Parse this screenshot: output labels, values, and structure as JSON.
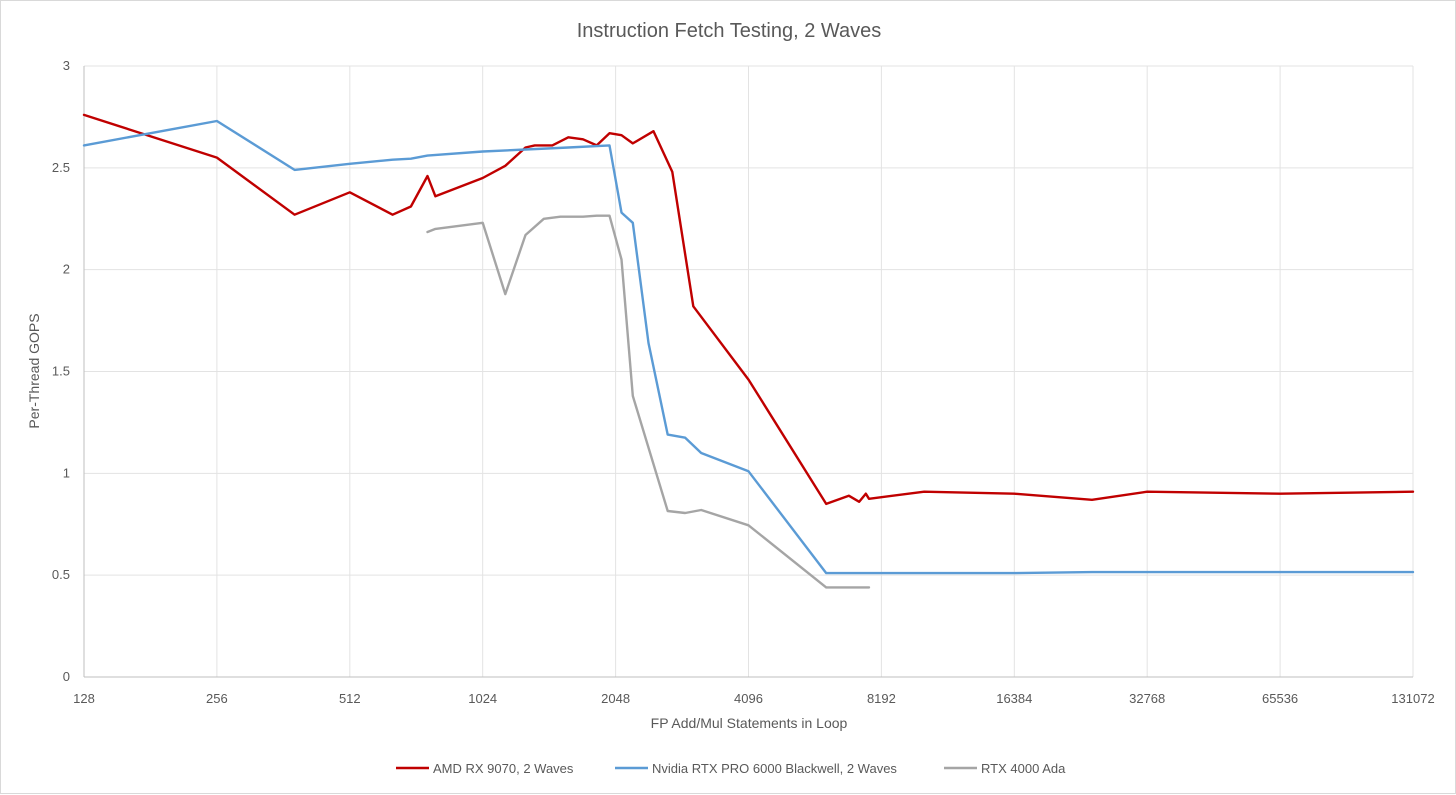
{
  "chart_data": {
    "type": "line",
    "title": "Instruction Fetch Testing, 2 Waves",
    "xlabel": "FP Add/Mul Statements in Loop",
    "ylabel": "Per-Thread GOPS",
    "x_scale": "log2",
    "xlim": [
      128,
      131072
    ],
    "ylim": [
      0,
      3
    ],
    "x_ticks": [
      "128",
      "256",
      "512",
      "1024",
      "2048",
      "4096",
      "8192",
      "16384",
      "32768",
      "65536",
      "131072"
    ],
    "y_ticks": [
      "0",
      "0.5",
      "1",
      "1.5",
      "2",
      "2.5",
      "3"
    ],
    "grid": true,
    "legend_position": "bottom",
    "series": [
      {
        "name": "AMD RX 9070, 2 Waves",
        "color": "#c00000",
        "points": [
          [
            128,
            2.76
          ],
          [
            256,
            2.55
          ],
          [
            384,
            2.27
          ],
          [
            512,
            2.38
          ],
          [
            640,
            2.27
          ],
          [
            704,
            2.31
          ],
          [
            768,
            2.46
          ],
          [
            800,
            2.36
          ],
          [
            1024,
            2.45
          ],
          [
            1152,
            2.51
          ],
          [
            1280,
            2.6
          ],
          [
            1344,
            2.61
          ],
          [
            1472,
            2.61
          ],
          [
            1600,
            2.65
          ],
          [
            1728,
            2.64
          ],
          [
            1856,
            2.61
          ],
          [
            1984,
            2.67
          ],
          [
            2112,
            2.66
          ],
          [
            2240,
            2.62
          ],
          [
            2496,
            2.68
          ],
          [
            2752,
            2.48
          ],
          [
            3072,
            1.82
          ],
          [
            4096,
            1.46
          ],
          [
            6144,
            0.85
          ],
          [
            6912,
            0.89
          ],
          [
            7296,
            0.86
          ],
          [
            7552,
            0.9
          ],
          [
            7680,
            0.875
          ],
          [
            10240,
            0.91
          ],
          [
            16384,
            0.9
          ],
          [
            24576,
            0.87
          ],
          [
            32768,
            0.91
          ],
          [
            65536,
            0.9
          ],
          [
            131072,
            0.91
          ]
        ]
      },
      {
        "name": "Nvidia RTX PRO 6000 Blackwell, 2 Waves",
        "color": "#5b9bd5",
        "points": [
          [
            128,
            2.61
          ],
          [
            256,
            2.73
          ],
          [
            384,
            2.49
          ],
          [
            512,
            2.52
          ],
          [
            640,
            2.54
          ],
          [
            704,
            2.545
          ],
          [
            768,
            2.56
          ],
          [
            1024,
            2.58
          ],
          [
            1280,
            2.59
          ],
          [
            1600,
            2.6
          ],
          [
            1984,
            2.61
          ],
          [
            2112,
            2.28
          ],
          [
            2240,
            2.23
          ],
          [
            2432,
            1.64
          ],
          [
            2688,
            1.19
          ],
          [
            2944,
            1.175
          ],
          [
            3200,
            1.1
          ],
          [
            4096,
            1.01
          ],
          [
            6144,
            0.51
          ],
          [
            16384,
            0.51
          ],
          [
            24576,
            0.515
          ],
          [
            131072,
            0.515
          ]
        ]
      },
      {
        "name": "RTX 4000 Ada",
        "color": "#a5a5a5",
        "points": [
          [
            768,
            2.185
          ],
          [
            800,
            2.2
          ],
          [
            1024,
            2.23
          ],
          [
            1152,
            1.88
          ],
          [
            1280,
            2.17
          ],
          [
            1408,
            2.25
          ],
          [
            1536,
            2.26
          ],
          [
            1728,
            2.26
          ],
          [
            1856,
            2.265
          ],
          [
            1984,
            2.265
          ],
          [
            2112,
            2.05
          ],
          [
            2240,
            1.38
          ],
          [
            2688,
            0.815
          ],
          [
            2944,
            0.805
          ],
          [
            3200,
            0.82
          ],
          [
            4096,
            0.745
          ],
          [
            6144,
            0.44
          ],
          [
            7680,
            0.44
          ]
        ]
      }
    ]
  }
}
